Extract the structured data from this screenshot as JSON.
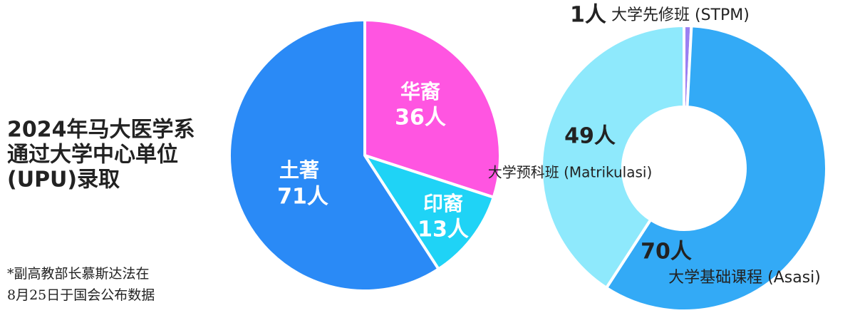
{
  "title": [
    "2024年马大医学系",
    "通过大学中心单位",
    "(UPU)录取"
  ],
  "note": [
    "*副高教部长慕斯达法在",
    "8月25日于国会公布数据"
  ],
  "chart_data": [
    {
      "type": "pie",
      "categories": [
        "华裔",
        "印裔",
        "土著"
      ],
      "values": [
        36,
        13,
        71
      ],
      "value_labels": [
        "36人",
        "13人",
        "71人"
      ],
      "colors": [
        "#ff55e1",
        "#1fd3f6",
        "#2a8af6"
      ]
    },
    {
      "type": "donut",
      "categories": [
        "大学先修班 (STPM)",
        "大学基础课程 (Asasi)",
        "大学预科班 (Matrikulasi)"
      ],
      "values": [
        1,
        70,
        49
      ],
      "value_labels": [
        "1人",
        "70人",
        "49人"
      ],
      "colors": [
        "#9b80f2",
        "#33aaf6",
        "#8ee9fc"
      ]
    }
  ]
}
